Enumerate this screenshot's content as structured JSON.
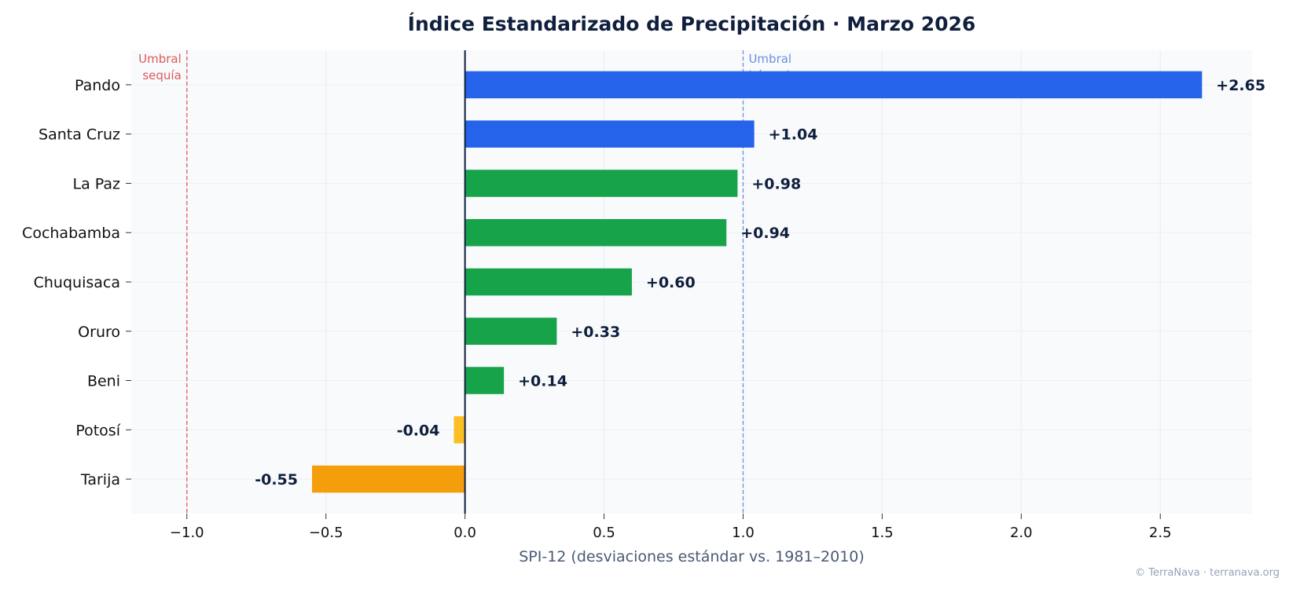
{
  "chart_data": {
    "type": "bar",
    "orientation": "horizontal",
    "title": "Índice Estandarizado de Precipitación · Marzo 2026",
    "xlabel": "SPI-12 (desviaciones estándar vs. 1981–2010)",
    "ylabel": "",
    "xlim": [
      -1.2,
      2.83
    ],
    "x_ticks": [
      -1.0,
      -0.5,
      0.0,
      0.5,
      1.0,
      1.5,
      2.0,
      2.5
    ],
    "x_tick_labels": [
      "−1.0",
      "−0.5",
      "0.0",
      "0.5",
      "1.0",
      "1.5",
      "2.0",
      "2.5"
    ],
    "grid": true,
    "categories": [
      "Pando",
      "Santa Cruz",
      "La Paz",
      "Cochabamba",
      "Chuquisaca",
      "Oruro",
      "Beni",
      "Potosí",
      "Tarija"
    ],
    "values": [
      2.65,
      1.04,
      0.98,
      0.94,
      0.6,
      0.33,
      0.14,
      -0.04,
      -0.55
    ],
    "value_labels": [
      "+2.65",
      "+1.04",
      "+0.98",
      "+0.94",
      "+0.60",
      "+0.33",
      "+0.14",
      "-0.04",
      "-0.55"
    ],
    "bar_colors": [
      "#2563eb",
      "#2563eb",
      "#16a34a",
      "#16a34a",
      "#16a34a",
      "#16a34a",
      "#16a34a",
      "#fbbf24",
      "#f59e0b"
    ],
    "thresholds": [
      {
        "value": -1.0,
        "label_lines": [
          "Umbral",
          "sequía"
        ],
        "color": "#e05a5a"
      },
      {
        "value": 1.0,
        "label_lines": [
          "Umbral",
          "húmedo"
        ],
        "color": "#6b8fe0"
      }
    ],
    "zero_line_color": "#0f1f3d",
    "plot_background": "#f8fafc"
  },
  "credit": "© TerraNava · terranava.org"
}
